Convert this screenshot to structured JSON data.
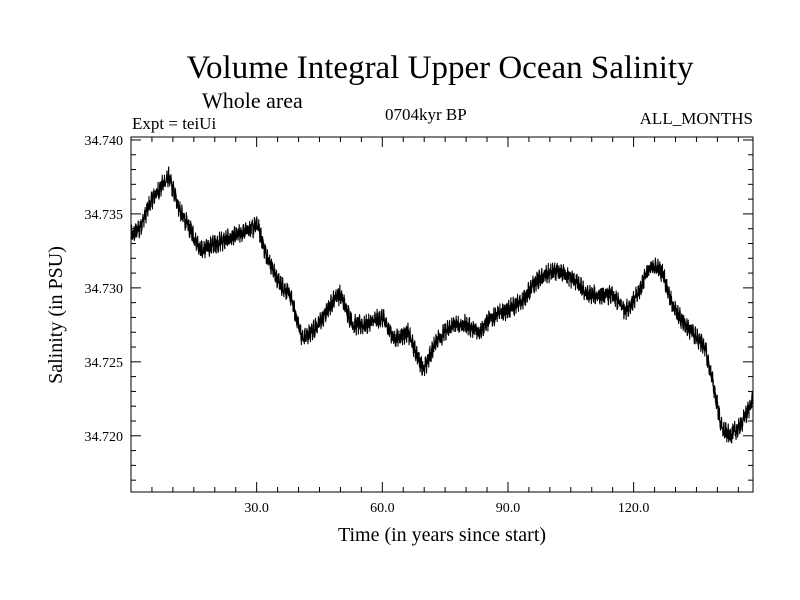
{
  "chart_data": {
    "type": "line",
    "title": "Volume Integral Upper Ocean Salinity",
    "subtitle": "Whole area",
    "experiment": "Expt = teiUi",
    "period": "0704kyr BP",
    "months": "ALL_MONTHS",
    "xlabel": "Time (in years since start)",
    "ylabel": "Salinity (in PSU)",
    "xlim": [
      0,
      148.5
    ],
    "ylim": [
      34.7162,
      34.7402
    ],
    "xticks": [
      30,
      60,
      90,
      120
    ],
    "xtick_labels": [
      "30.0",
      "60.0",
      "90.0",
      "120.0"
    ],
    "yticks": [
      34.72,
      34.725,
      34.73,
      34.735,
      34.74
    ],
    "ytick_labels": [
      "34.720",
      "34.725",
      "34.730",
      "34.735",
      "34.740"
    ],
    "grid": false,
    "series": [
      {
        "name": "Salinity",
        "color": "#000000",
        "noise_amplitude": 0.0006,
        "points_per_year": 24,
        "envelope_x": [
          0,
          2,
          5,
          9,
          12,
          17,
          20,
          25,
          29,
          30,
          32,
          35,
          38,
          41,
          43,
          46,
          49,
          50,
          53,
          56,
          60,
          63,
          66,
          69,
          70,
          73,
          77,
          80,
          83,
          86,
          90,
          93,
          97,
          100,
          103,
          106,
          109,
          112,
          115,
          118,
          121,
          123,
          125,
          127,
          129,
          131,
          134,
          137,
          139,
          141,
          143,
          145,
          147,
          148.5
        ],
        "envelope_y": [
          34.7335,
          34.734,
          34.736,
          34.7375,
          34.735,
          34.7325,
          34.733,
          34.7335,
          34.734,
          34.7345,
          34.7325,
          34.7305,
          34.7295,
          34.7265,
          34.727,
          34.728,
          34.7295,
          34.7295,
          34.7275,
          34.7275,
          34.728,
          34.7265,
          34.727,
          34.725,
          34.7245,
          34.7265,
          34.7275,
          34.7275,
          34.727,
          34.728,
          34.7285,
          34.729,
          34.7305,
          34.731,
          34.731,
          34.7305,
          34.7295,
          34.7295,
          34.7295,
          34.7285,
          34.7295,
          34.731,
          34.7315,
          34.731,
          34.729,
          34.728,
          34.727,
          34.726,
          34.7235,
          34.7205,
          34.72,
          34.7205,
          34.7215,
          34.7225
        ]
      }
    ]
  }
}
